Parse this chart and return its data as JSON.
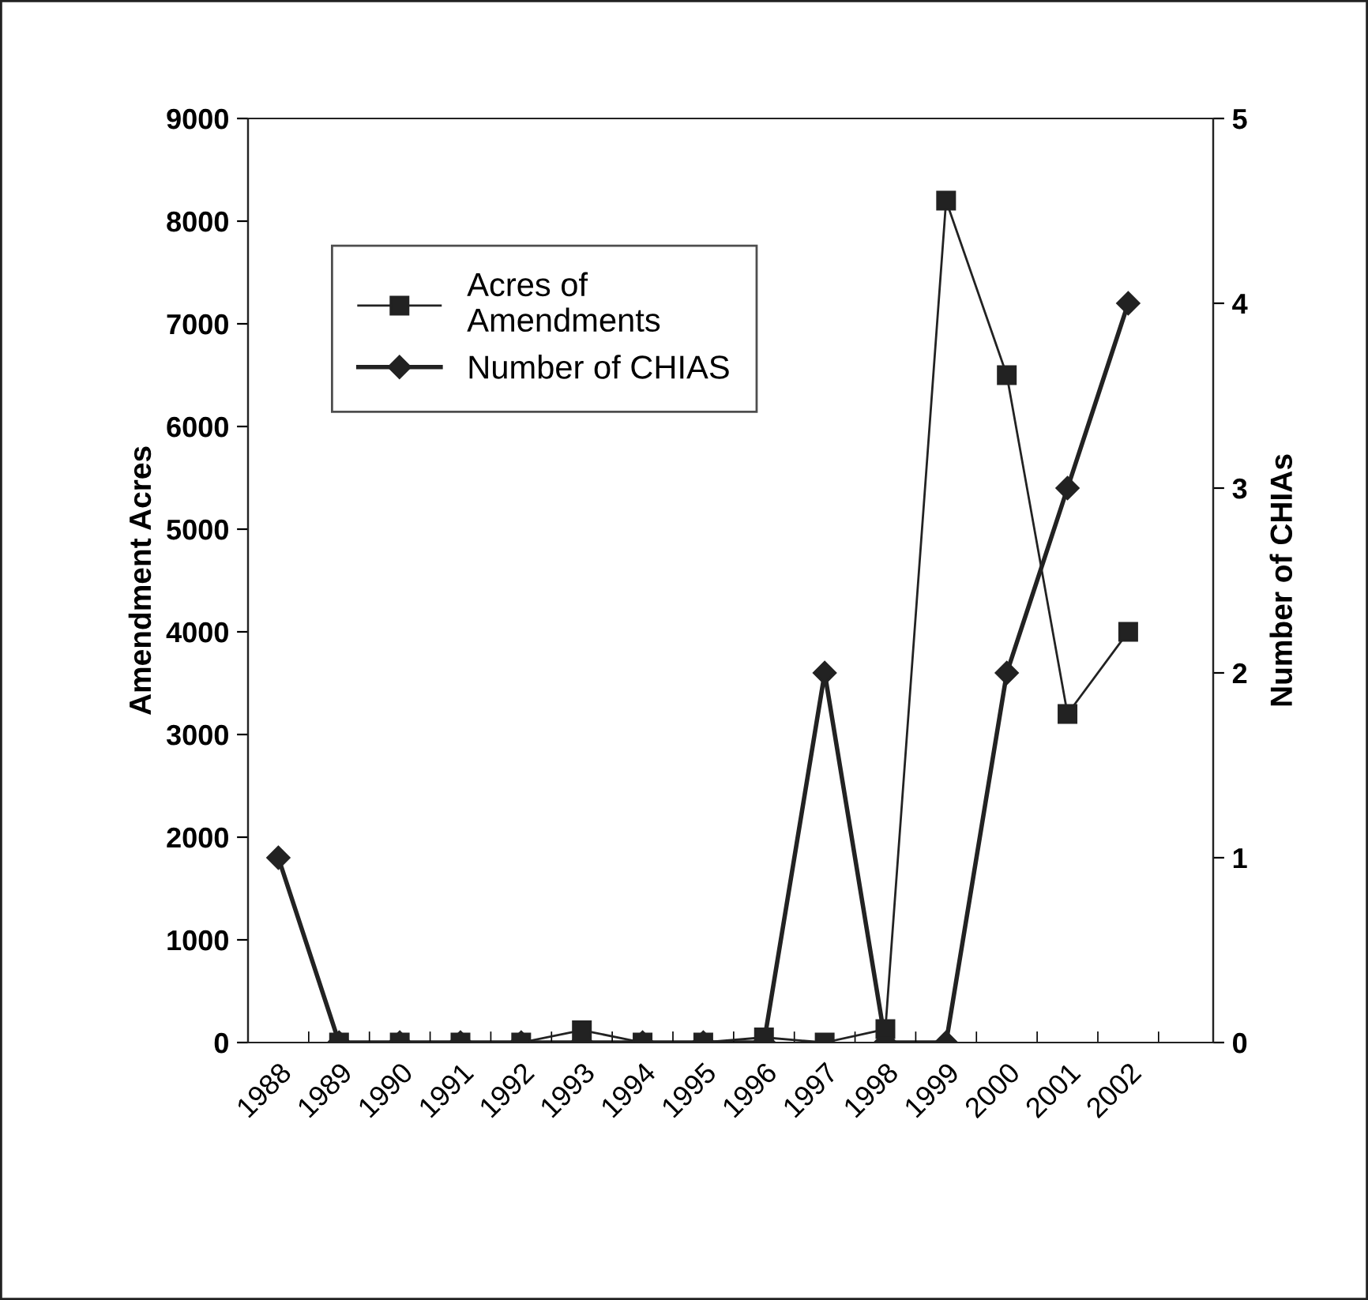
{
  "chart_data": {
    "type": "line",
    "categories": [
      "1988",
      "1989",
      "1990",
      "1991",
      "1992",
      "1993",
      "1994",
      "1995",
      "1996",
      "1997",
      "1998",
      "1999",
      "2000",
      "2001",
      "2002"
    ],
    "series": [
      {
        "name": "Acres of\nAmendments",
        "color": "#222222",
        "marker": "square",
        "values": [
          null,
          0,
          0,
          0,
          0,
          120,
          0,
          0,
          50,
          0,
          130,
          8200,
          6500,
          3200,
          4000
        ]
      },
      {
        "name": "Number of CHIAS",
        "color": "#222222",
        "marker": "diamond",
        "axis": "y2",
        "values": [
          1,
          0,
          0,
          0,
          0,
          0,
          0,
          0,
          0,
          2,
          0,
          0,
          2,
          3,
          4
        ]
      }
    ],
    "ylabel": "Amendment Acres",
    "y2label": "Number of CHIAs",
    "ylim": [
      0,
      9000
    ],
    "yticks": [
      0,
      1000,
      2000,
      3000,
      4000,
      5000,
      6000,
      7000,
      8000,
      9000
    ],
    "y2lim": [
      0,
      5
    ],
    "y2ticks": [
      0,
      1,
      2,
      3,
      4,
      5
    ],
    "legend": "top left",
    "grid": false,
    "line_style": "solid"
  }
}
